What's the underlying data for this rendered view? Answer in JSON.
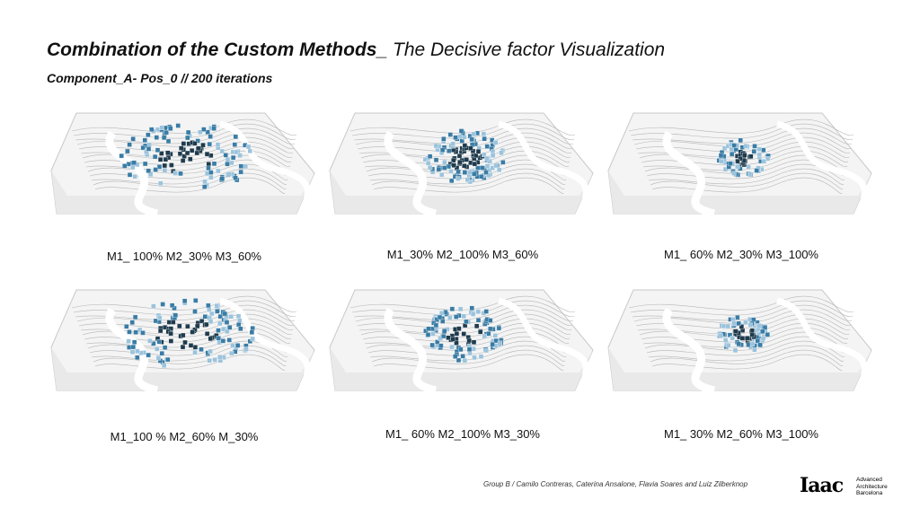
{
  "header": {
    "title_bold": "Combination of the Custom Methods_",
    "title_light": " The Decisive factor Visualization",
    "subtitle": "Component_A- Pos_0 // 200 iterations"
  },
  "panels": [
    {
      "caption": "M1_ 100% M2_30% M3_60%",
      "pattern": "spread"
    },
    {
      "caption": "M1_30% M2_100% M3_60%",
      "pattern": "cluster"
    },
    {
      "caption": "M1_ 60% M2_30% M3_100%",
      "pattern": "compact"
    },
    {
      "caption": "M1_100 % M2_60% M_30%",
      "pattern": "spread"
    },
    {
      "caption": "M1_ 60% M2_100% M3_30%",
      "pattern": "cluster"
    },
    {
      "caption": "M1_ 30% M2_60% M3_100%",
      "pattern": "compact"
    }
  ],
  "colors": {
    "dark": "#1f3b4d",
    "mid": "#3a7ca5",
    "light": "#9cc3dc",
    "terrain_line": "#b5b5b5",
    "box_edge": "#c8c8c8"
  },
  "footer": {
    "credit": "Group B / Camilo Contreras, Caterina Ansalone, Flavia Soares and Luiz Zilberknop",
    "logo_mark": "Iaac",
    "logo_lines": [
      "Advanced",
      "Architecture",
      "Barcelona"
    ]
  }
}
